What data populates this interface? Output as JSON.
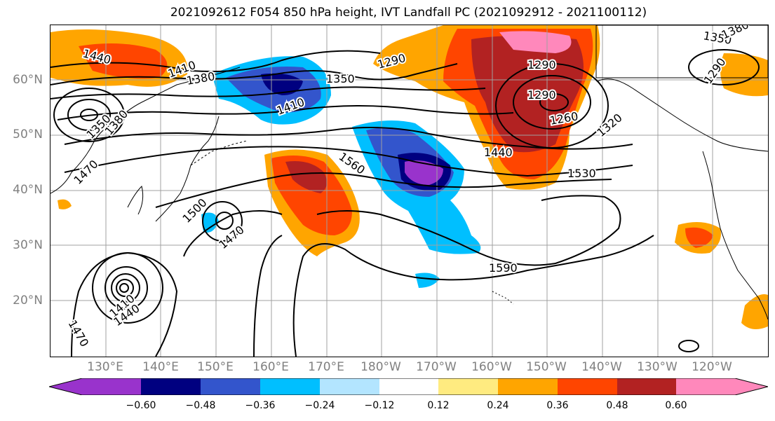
{
  "title": "2021092612 F054 850 hPa height, IVT Landfall PC (2021092912 - 2021100112)",
  "map": {
    "latitude_labels": [
      "60°N",
      "50°N",
      "40°N",
      "30°N",
      "20°N"
    ],
    "longitude_labels": [
      "130°E",
      "140°E",
      "150°E",
      "160°E",
      "170°E",
      "180°W",
      "170°W",
      "160°W",
      "150°W",
      "140°W",
      "130°W",
      "120°W"
    ],
    "contour_labels": [
      "1440",
      "1410",
      "1380",
      "1350",
      "1290",
      "1290",
      "1350",
      "1380",
      "1290",
      "1350",
      "1410",
      "1380",
      "1260",
      "1320",
      "1470",
      "1560",
      "1440",
      "1530",
      "1500",
      "1470",
      "1590",
      "1410",
      "1440",
      "1470",
      "1290"
    ],
    "colors": {
      "contour": "#000000",
      "coastline": "#000000",
      "grid": "#a0a0a0",
      "axis_labels": "#808080"
    }
  },
  "colorbar": {
    "tick_labels": [
      "−0.60",
      "−0.48",
      "−0.36",
      "−0.24",
      "−0.12",
      "0.12",
      "0.24",
      "0.36",
      "0.48",
      "0.60"
    ],
    "colors": [
      "#9933cc",
      "#000080",
      "#3355cc",
      "#00bfff",
      "#b3e5ff",
      "#ffffff",
      "#ffeb80",
      "#ffa500",
      "#ff4500",
      "#b22222",
      "#ff88bb"
    ]
  }
}
